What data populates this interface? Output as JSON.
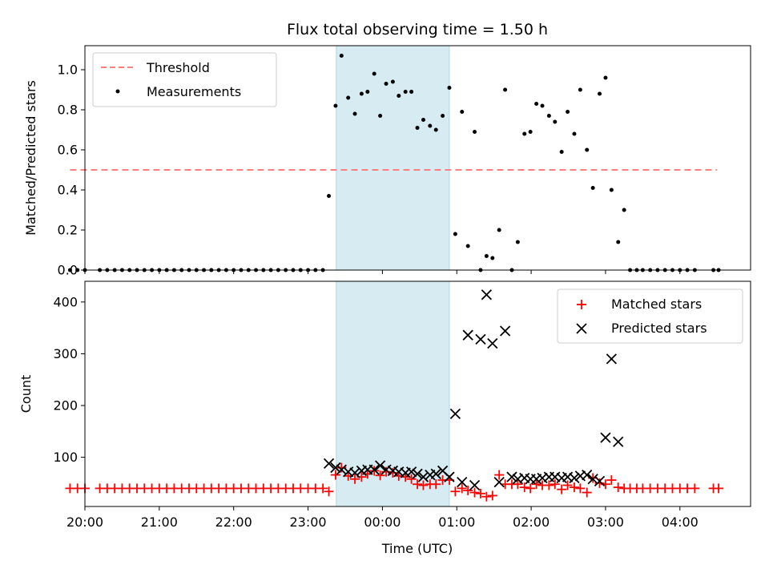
{
  "chart_data": [
    {
      "type": "scatter",
      "title": "Flux total observing time = 1.50 h",
      "xlabel": "",
      "ylabel": "Matched/Predicted stars",
      "x_unit": "hours since 00:00 UTC",
      "xlim": [
        -4.0,
        4.95
      ],
      "ylim": [
        0,
        1.12
      ],
      "yticks": [
        0.0,
        0.2,
        0.4,
        0.6,
        0.8,
        1.0
      ],
      "ytick_labels": [
        "0.0",
        "0.2",
        "0.4",
        "0.6",
        "0.8",
        "1.0"
      ],
      "legend_position": "top-left",
      "shaded_region": [
        -0.62,
        0.9
      ],
      "series": [
        {
          "name": "Threshold",
          "style": "dashed-line",
          "color": "#ff7f7f",
          "x": [
            -4.2,
            4.5
          ],
          "y": [
            0.5,
            0.5
          ]
        },
        {
          "name": "Measurements",
          "style": "points",
          "color": "#000000",
          "points": [
            [
              -4.2,
              0.0
            ],
            [
              -4.1,
              0.0
            ],
            [
              -4.0,
              0.0
            ],
            [
              -3.8,
              0.0
            ],
            [
              -3.7,
              0.0
            ],
            [
              -3.6,
              0.0
            ],
            [
              -3.5,
              0.0
            ],
            [
              -3.4,
              0.0
            ],
            [
              -3.3,
              0.0
            ],
            [
              -3.2,
              0.0
            ],
            [
              -3.1,
              0.0
            ],
            [
              -3.0,
              0.0
            ],
            [
              -2.9,
              0.0
            ],
            [
              -2.8,
              0.0
            ],
            [
              -2.7,
              0.0
            ],
            [
              -2.6,
              0.0
            ],
            [
              -2.5,
              0.0
            ],
            [
              -2.4,
              0.0
            ],
            [
              -2.3,
              0.0
            ],
            [
              -2.2,
              0.0
            ],
            [
              -2.1,
              0.0
            ],
            [
              -2.0,
              0.0
            ],
            [
              -1.9,
              0.0
            ],
            [
              -1.8,
              0.0
            ],
            [
              -1.7,
              0.0
            ],
            [
              -1.6,
              0.0
            ],
            [
              -1.5,
              0.0
            ],
            [
              -1.4,
              0.0
            ],
            [
              -1.3,
              0.0
            ],
            [
              -1.2,
              0.0
            ],
            [
              -1.1,
              0.0
            ],
            [
              -1.0,
              0.0
            ],
            [
              -0.9,
              0.0
            ],
            [
              -0.8,
              0.0
            ],
            [
              -0.72,
              0.37
            ],
            [
              -0.63,
              0.82
            ],
            [
              -0.55,
              1.07
            ],
            [
              -0.46,
              0.86
            ],
            [
              -0.37,
              0.78
            ],
            [
              -0.28,
              0.88
            ],
            [
              -0.2,
              0.89
            ],
            [
              -0.11,
              0.98
            ],
            [
              -0.03,
              0.77
            ],
            [
              0.05,
              0.93
            ],
            [
              0.14,
              0.94
            ],
            [
              0.22,
              0.87
            ],
            [
              0.31,
              0.89
            ],
            [
              0.39,
              0.89
            ],
            [
              0.47,
              0.71
            ],
            [
              0.55,
              0.75
            ],
            [
              0.64,
              0.72
            ],
            [
              0.72,
              0.7
            ],
            [
              0.81,
              0.77
            ],
            [
              0.9,
              0.91
            ],
            [
              0.98,
              0.18
            ],
            [
              1.07,
              0.79
            ],
            [
              1.15,
              0.12
            ],
            [
              1.24,
              0.69
            ],
            [
              1.32,
              0.0
            ],
            [
              1.4,
              0.07
            ],
            [
              1.48,
              0.06
            ],
            [
              1.57,
              0.2
            ],
            [
              1.65,
              0.9
            ],
            [
              1.74,
              0.0
            ],
            [
              1.82,
              0.14
            ],
            [
              1.91,
              0.68
            ],
            [
              1.99,
              0.69
            ],
            [
              2.07,
              0.83
            ],
            [
              2.15,
              0.82
            ],
            [
              2.24,
              0.77
            ],
            [
              2.32,
              0.74
            ],
            [
              2.41,
              0.59
            ],
            [
              2.49,
              0.79
            ],
            [
              2.58,
              0.68
            ],
            [
              2.66,
              0.9
            ],
            [
              2.75,
              0.6
            ],
            [
              2.83,
              0.41
            ],
            [
              2.92,
              0.88
            ],
            [
              3.0,
              0.96
            ],
            [
              3.08,
              0.4
            ],
            [
              3.17,
              0.14
            ],
            [
              3.25,
              0.3
            ],
            [
              3.33,
              0.0
            ],
            [
              3.42,
              0.0
            ],
            [
              3.5,
              0.0
            ],
            [
              3.6,
              0.0
            ],
            [
              3.7,
              0.0
            ],
            [
              3.8,
              0.0
            ],
            [
              3.9,
              0.0
            ],
            [
              4.0,
              0.0
            ],
            [
              4.1,
              0.0
            ],
            [
              4.2,
              0.0
            ],
            [
              4.45,
              0.0
            ],
            [
              4.52,
              0.0
            ]
          ]
        }
      ]
    },
    {
      "type": "scatter",
      "title": "",
      "xlabel": "Time (UTC)",
      "ylabel": "Count",
      "x_unit": "hours since 00:00 UTC",
      "xlim": [
        -4.0,
        4.95
      ],
      "ylim": [
        5,
        440
      ],
      "yticks": [
        100,
        200,
        300,
        400
      ],
      "ytick_labels": [
        "100",
        "200",
        "300",
        "400"
      ],
      "xticks": [
        -4,
        -3,
        -2,
        -1,
        0,
        1,
        2,
        3,
        4
      ],
      "xtick_labels": [
        "20:00",
        "21:00",
        "22:00",
        "23:00",
        "00:00",
        "01:00",
        "02:00",
        "03:00",
        "04:00"
      ],
      "legend_position": "top-right",
      "shaded_region": [
        -0.62,
        0.9
      ],
      "series": [
        {
          "name": "Matched stars",
          "marker": "plus",
          "color": "#ff0000",
          "points": [
            [
              -4.2,
              40
            ],
            [
              -4.1,
              40
            ],
            [
              -4.0,
              40
            ],
            [
              -3.8,
              40
            ],
            [
              -3.7,
              40
            ],
            [
              -3.6,
              40
            ],
            [
              -3.5,
              40
            ],
            [
              -3.4,
              40
            ],
            [
              -3.3,
              40
            ],
            [
              -3.2,
              40
            ],
            [
              -3.1,
              40
            ],
            [
              -3.0,
              40
            ],
            [
              -2.9,
              40
            ],
            [
              -2.8,
              40
            ],
            [
              -2.7,
              40
            ],
            [
              -2.6,
              40
            ],
            [
              -2.5,
              40
            ],
            [
              -2.4,
              40
            ],
            [
              -2.3,
              40
            ],
            [
              -2.2,
              40
            ],
            [
              -2.1,
              40
            ],
            [
              -2.0,
              40
            ],
            [
              -1.9,
              40
            ],
            [
              -1.8,
              40
            ],
            [
              -1.7,
              40
            ],
            [
              -1.6,
              40
            ],
            [
              -1.5,
              40
            ],
            [
              -1.4,
              40
            ],
            [
              -1.3,
              40
            ],
            [
              -1.2,
              40
            ],
            [
              -1.1,
              40
            ],
            [
              -1.0,
              40
            ],
            [
              -0.9,
              40
            ],
            [
              -0.8,
              40
            ],
            [
              -0.72,
              34
            ],
            [
              -0.63,
              66
            ],
            [
              -0.55,
              80
            ],
            [
              -0.46,
              64
            ],
            [
              -0.37,
              58
            ],
            [
              -0.28,
              62
            ],
            [
              -0.2,
              68
            ],
            [
              -0.11,
              74
            ],
            [
              -0.03,
              65
            ],
            [
              0.05,
              72
            ],
            [
              0.14,
              70
            ],
            [
              0.22,
              64
            ],
            [
              0.31,
              62
            ],
            [
              0.39,
              58
            ],
            [
              0.47,
              48
            ],
            [
              0.55,
              46
            ],
            [
              0.64,
              48
            ],
            [
              0.72,
              48
            ],
            [
              0.81,
              56
            ],
            [
              0.9,
              56
            ],
            [
              0.98,
              34
            ],
            [
              1.07,
              40
            ],
            [
              1.15,
              36
            ],
            [
              1.24,
              32
            ],
            [
              1.32,
              30
            ],
            [
              1.4,
              24
            ],
            [
              1.48,
              26
            ],
            [
              1.57,
              66
            ],
            [
              1.65,
              48
            ],
            [
              1.74,
              48
            ],
            [
              1.82,
              48
            ],
            [
              1.91,
              42
            ],
            [
              1.99,
              40
            ],
            [
              2.07,
              48
            ],
            [
              2.15,
              46
            ],
            [
              2.24,
              46
            ],
            [
              2.32,
              48
            ],
            [
              2.41,
              38
            ],
            [
              2.49,
              46
            ],
            [
              2.58,
              42
            ],
            [
              2.66,
              40
            ],
            [
              2.75,
              32
            ],
            [
              2.83,
              60
            ],
            [
              2.92,
              50
            ],
            [
              3.0,
              48
            ],
            [
              3.08,
              56
            ],
            [
              3.17,
              42
            ],
            [
              3.25,
              40
            ],
            [
              3.33,
              40
            ],
            [
              3.42,
              40
            ],
            [
              3.5,
              40
            ],
            [
              3.6,
              40
            ],
            [
              3.7,
              40
            ],
            [
              3.8,
              40
            ],
            [
              3.9,
              40
            ],
            [
              4.0,
              40
            ],
            [
              4.1,
              40
            ],
            [
              4.2,
              40
            ],
            [
              4.45,
              40
            ],
            [
              4.52,
              40
            ]
          ]
        },
        {
          "name": "Predicted stars",
          "marker": "x",
          "color": "#000000",
          "points": [
            [
              -0.72,
              88
            ],
            [
              -0.63,
              80
            ],
            [
              -0.55,
              76
            ],
            [
              -0.46,
              72
            ],
            [
              -0.37,
              70
            ],
            [
              -0.28,
              74
            ],
            [
              -0.2,
              76
            ],
            [
              -0.11,
              76
            ],
            [
              -0.03,
              84
            ],
            [
              0.05,
              76
            ],
            [
              0.14,
              74
            ],
            [
              0.22,
              72
            ],
            [
              0.31,
              70
            ],
            [
              0.39,
              72
            ],
            [
              0.47,
              68
            ],
            [
              0.55,
              62
            ],
            [
              0.64,
              66
            ],
            [
              0.72,
              68
            ],
            [
              0.81,
              74
            ],
            [
              0.9,
              62
            ],
            [
              0.98,
              184
            ],
            [
              1.07,
              52
            ],
            [
              1.15,
              336
            ],
            [
              1.24,
              46
            ],
            [
              1.32,
              328
            ],
            [
              1.4,
              414
            ],
            [
              1.48,
              320
            ],
            [
              1.57,
              52
            ],
            [
              1.65,
              344
            ],
            [
              1.74,
              62
            ],
            [
              1.82,
              58
            ],
            [
              1.91,
              60
            ],
            [
              1.99,
              58
            ],
            [
              2.07,
              58
            ],
            [
              2.15,
              60
            ],
            [
              2.24,
              62
            ],
            [
              2.32,
              62
            ],
            [
              2.41,
              60
            ],
            [
              2.49,
              62
            ],
            [
              2.58,
              60
            ],
            [
              2.66,
              64
            ],
            [
              2.75,
              66
            ],
            [
              2.83,
              58
            ],
            [
              2.92,
              54
            ],
            [
              3.0,
              138
            ],
            [
              3.08,
              290
            ],
            [
              3.17,
              130
            ]
          ]
        }
      ]
    }
  ]
}
